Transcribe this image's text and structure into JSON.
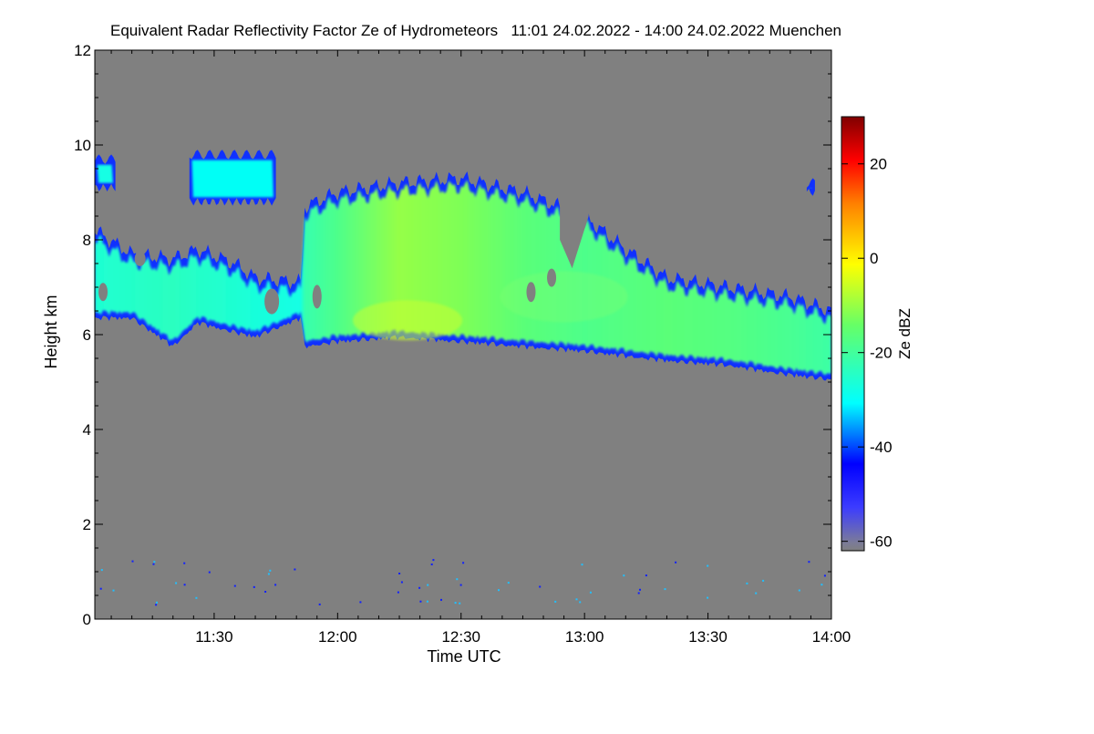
{
  "chart_data": {
    "type": "heatmap",
    "title": "Equivalent Radar Reflectivity Factor Ze of Hydrometeors   11:01 24.02.2022 - 14:00 24.02.2022 Muenchen",
    "xlabel": "Time UTC",
    "ylabel": "Height km",
    "colorbar_label": "Ze dBZ",
    "x_range_minutes_utc": [
      661,
      840
    ],
    "x_ticks": [
      {
        "label": "11:30",
        "minutes": 690
      },
      {
        "label": "12:00",
        "minutes": 720
      },
      {
        "label": "12:30",
        "minutes": 750
      },
      {
        "label": "13:00",
        "minutes": 780
      },
      {
        "label": "13:30",
        "minutes": 810
      },
      {
        "label": "14:00",
        "minutes": 840
      }
    ],
    "ylim": [
      0,
      12
    ],
    "y_ticks": [
      0,
      2,
      4,
      6,
      8,
      10,
      12
    ],
    "colorbar_range": [
      -62,
      30
    ],
    "colorbar_ticks": [
      -60,
      -40,
      -20,
      0,
      20
    ],
    "background_color": "#808080",
    "cloud_layer": [
      {
        "t": 661,
        "base": 6.4,
        "top": 8.2,
        "ze": -26
      },
      {
        "t": 670,
        "base": 6.4,
        "top": 7.7,
        "ze": -25
      },
      {
        "t": 680,
        "base": 5.8,
        "top": 7.6,
        "ze": -24
      },
      {
        "t": 686,
        "base": 6.3,
        "top": 7.8,
        "ze": -25
      },
      {
        "t": 695,
        "base": 6.1,
        "top": 7.5,
        "ze": -26
      },
      {
        "t": 700,
        "base": 6.0,
        "top": 7.2,
        "ze": -27
      },
      {
        "t": 711,
        "base": 6.4,
        "top": 7.1,
        "ze": -28
      },
      {
        "t": 712,
        "base": 5.8,
        "top": 8.7,
        "ze": -22
      },
      {
        "t": 720,
        "base": 5.9,
        "top": 9.0,
        "ze": -18
      },
      {
        "t": 735,
        "base": 6.0,
        "top": 9.2,
        "ze": -10
      },
      {
        "t": 750,
        "base": 5.9,
        "top": 9.3,
        "ze": -12
      },
      {
        "t": 765,
        "base": 5.8,
        "top": 9.0,
        "ze": -16
      },
      {
        "t": 780,
        "base": 5.7,
        "top": 8.5,
        "ze": -18
      },
      {
        "t": 790,
        "base": 5.6,
        "top": 7.8,
        "ze": -17
      },
      {
        "t": 800,
        "base": 5.5,
        "top": 7.2,
        "ze": -16
      },
      {
        "t": 815,
        "base": 5.4,
        "top": 7.0,
        "ze": -17
      },
      {
        "t": 830,
        "base": 5.2,
        "top": 6.8,
        "ze": -19
      },
      {
        "t": 840,
        "base": 5.1,
        "top": 6.5,
        "ze": -21
      }
    ],
    "upper_fragments": [
      {
        "t_start": 661,
        "t_end": 666,
        "base": 9.1,
        "top": 9.7,
        "ze": -28
      },
      {
        "t_start": 684,
        "t_end": 705,
        "base": 8.8,
        "top": 9.8,
        "ze": -30
      },
      {
        "t_start": 834,
        "t_end": 836,
        "base": 9.0,
        "top": 9.2,
        "ze": -35
      }
    ]
  }
}
